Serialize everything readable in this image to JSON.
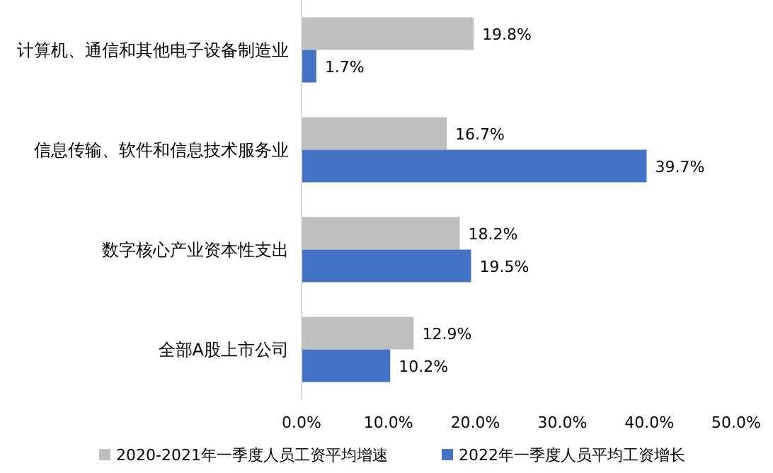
{
  "chart_data": {
    "type": "bar",
    "orientation": "horizontal",
    "categories": [
      "计算机、通信和其他电子设备制造业",
      "信息传输、软件和信息技术服务业",
      "数字核心产业资本性支出",
      "全部A股上市公司"
    ],
    "series": [
      {
        "name": "2020-2021年一季度人员工资平均增速",
        "color": "#bfbfbf",
        "values": [
          19.8,
          16.7,
          18.2,
          12.9
        ],
        "value_labels": [
          "19.8%",
          "16.7%",
          "18.2%",
          "12.9%"
        ]
      },
      {
        "name": "2022年一季度人员平均工资增长",
        "color": "#4472c4",
        "values": [
          1.7,
          39.7,
          19.5,
          10.2
        ],
        "value_labels": [
          "1.7%",
          "39.7%",
          "19.5%",
          "10.2%"
        ]
      }
    ],
    "xlim": [
      0,
      50
    ],
    "xticks": [
      {
        "value": 0,
        "label": "0.0%"
      },
      {
        "value": 10,
        "label": "10.0%"
      },
      {
        "value": 20,
        "label": "20.0%"
      },
      {
        "value": 30,
        "label": "30.0%"
      },
      {
        "value": 40,
        "label": "40.0%"
      },
      {
        "value": 50,
        "label": "50.0%"
      }
    ],
    "legend": "bottom"
  }
}
